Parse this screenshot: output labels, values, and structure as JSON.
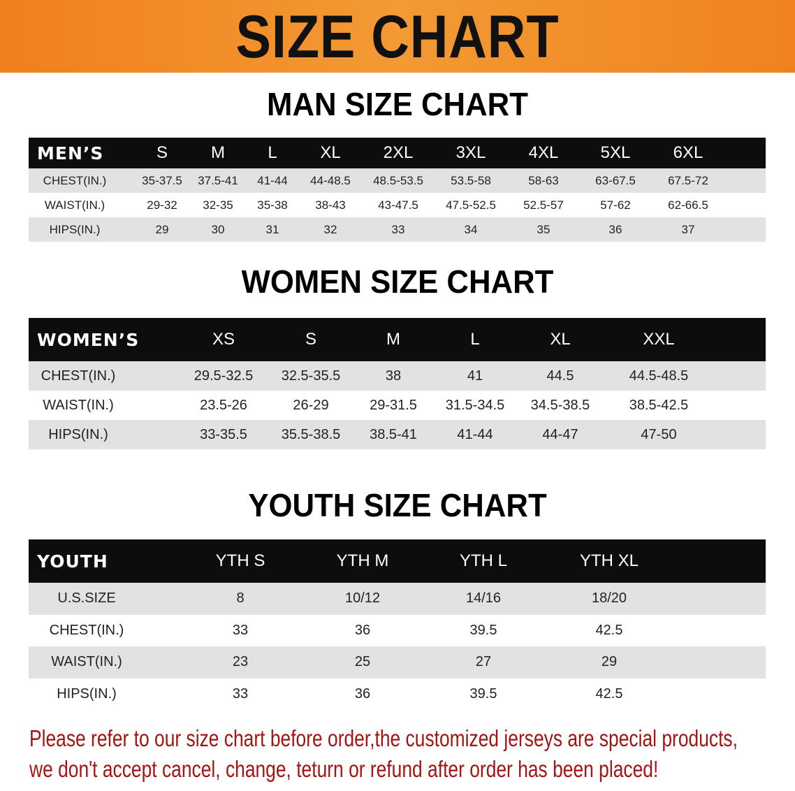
{
  "banner": {
    "title": "SIZE CHART",
    "color": "#f08a26"
  },
  "men": {
    "title": "MAN SIZE CHART",
    "header_label": "MEN’S",
    "sizes": [
      "S",
      "M",
      "L",
      "XL",
      "2XL",
      "3XL",
      "4XL",
      "5XL",
      "6XL"
    ],
    "rows": [
      {
        "label": "CHEST(IN.)",
        "values": [
          "35-37.5",
          "37.5-41",
          "41-44",
          "44-48.5",
          "48.5-53.5",
          "53.5-58",
          "58-63",
          "63-67.5",
          "67.5-72"
        ]
      },
      {
        "label": "WAIST(IN.)",
        "values": [
          "29-32",
          "32-35",
          "35-38",
          "38-43",
          "43-47.5",
          "47.5-52.5",
          "52.5-57",
          "57-62",
          "62-66.5"
        ]
      },
      {
        "label": "HIPS(IN.)",
        "values": [
          "29",
          "30",
          "31",
          "32",
          "33",
          "34",
          "35",
          "36",
          "37"
        ]
      }
    ]
  },
  "women": {
    "title": "WOMEN SIZE CHART",
    "header_label": "WOMEN’S",
    "sizes": [
      "XS",
      "S",
      "M",
      "L",
      "XL",
      "XXL"
    ],
    "rows": [
      {
        "label": "CHEST(IN.)",
        "values": [
          "29.5-32.5",
          "32.5-35.5",
          "38",
          "41",
          "44.5",
          "44.5-48.5"
        ]
      },
      {
        "label": "WAIST(IN.)",
        "values": [
          "23.5-26",
          "26-29",
          "29-31.5",
          "31.5-34.5",
          "34.5-38.5",
          "38.5-42.5"
        ]
      },
      {
        "label": "HIPS(IN.)",
        "values": [
          "33-35.5",
          "35.5-38.5",
          "38.5-41",
          "41-44",
          "44-47",
          "47-50"
        ]
      }
    ]
  },
  "youth": {
    "title": "YOUTH SIZE CHART",
    "header_label": "YOUTH",
    "sizes": [
      "YTH S",
      "YTH M",
      "YTH L",
      "YTH XL"
    ],
    "rows": [
      {
        "label": "U.S.SIZE",
        "values": [
          "8",
          "10/12",
          "14/16",
          "18/20"
        ]
      },
      {
        "label": "CHEST(IN.)",
        "values": [
          "33",
          "36",
          "39.5",
          "42.5"
        ]
      },
      {
        "label": "WAIST(IN.)",
        "values": [
          "23",
          "25",
          "27",
          "29"
        ]
      },
      {
        "label": "HIPS(IN.)",
        "values": [
          "33",
          "36",
          "39.5",
          "42.5"
        ]
      }
    ]
  },
  "notice": {
    "line1": "Please refer to our size chart before order,the customized jerseys are special products,",
    "line2": "we don't accept cancel, change, teturn or refund after order has been placed!",
    "color": "#a31515"
  }
}
